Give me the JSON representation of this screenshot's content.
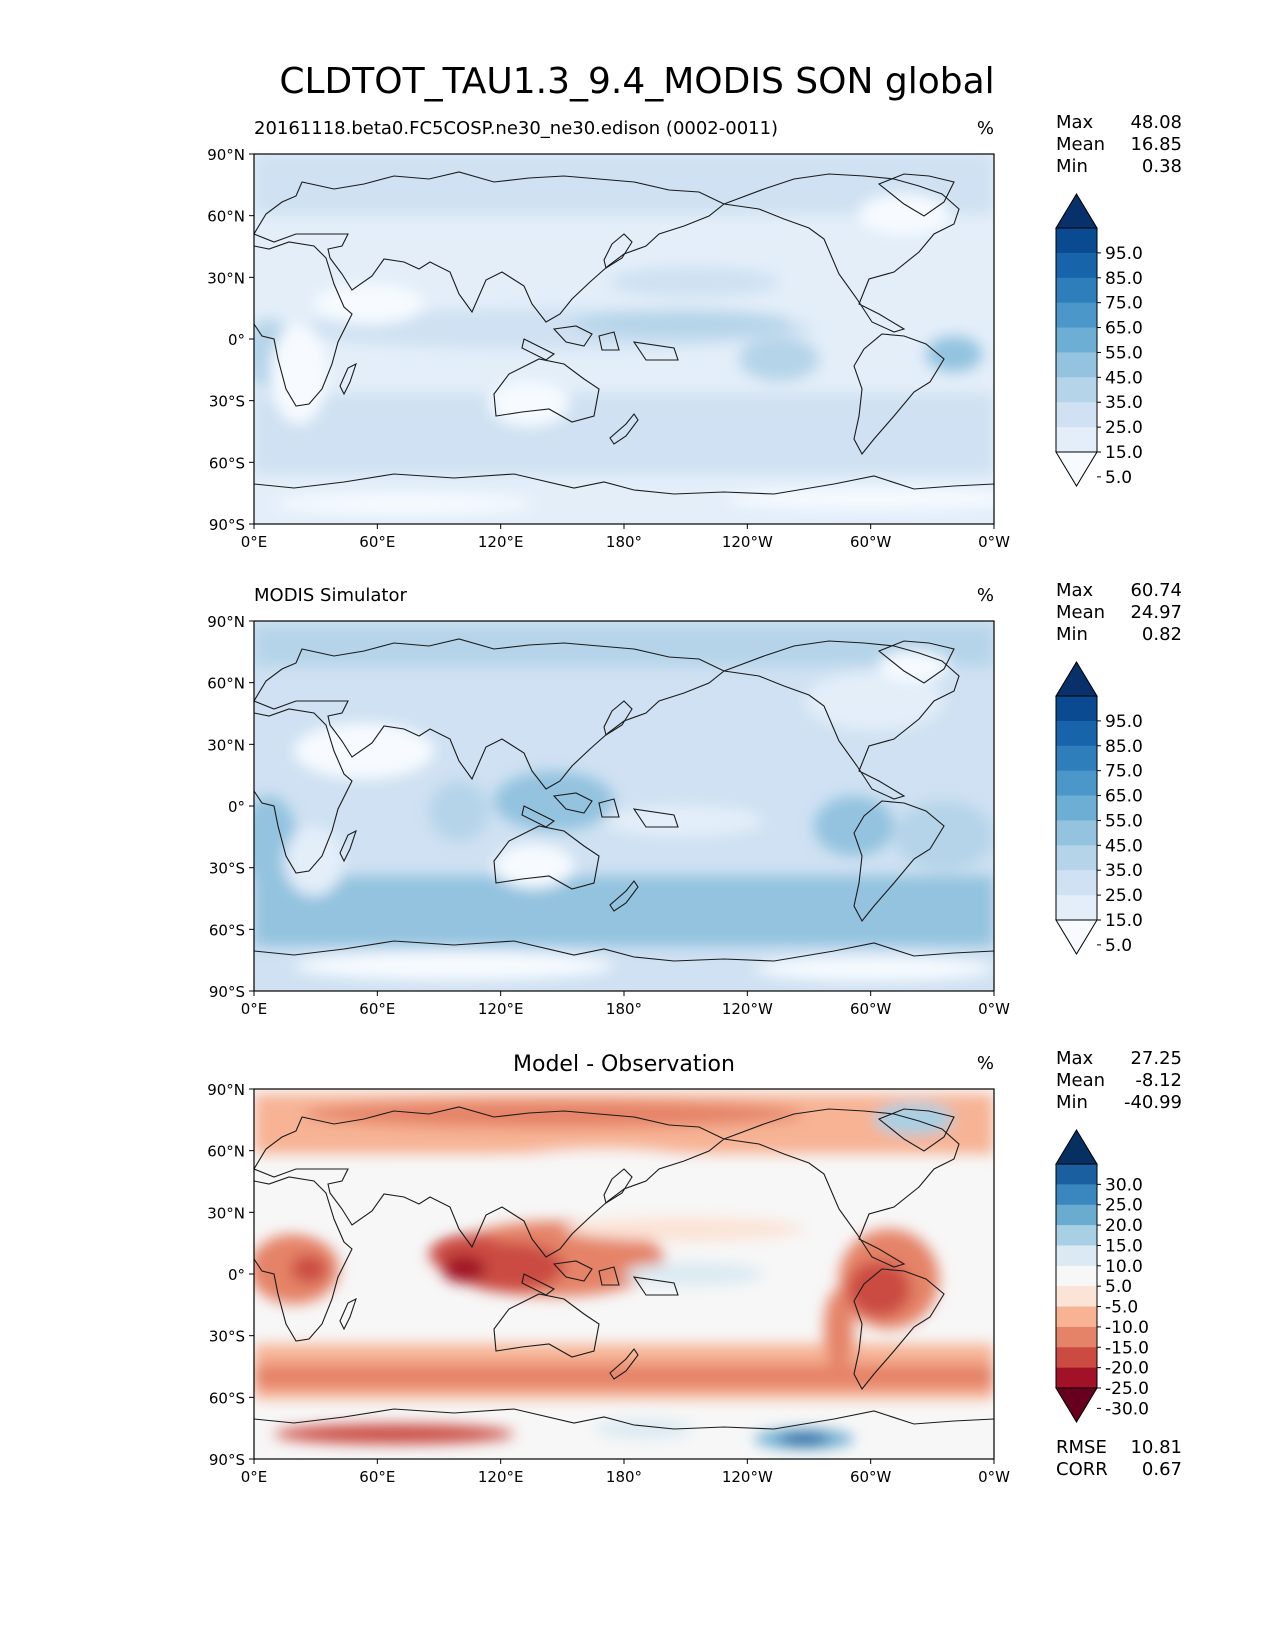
{
  "figure": {
    "title": "CLDTOT_TAU1.3_9.4_MODIS SON global"
  },
  "axis_ticks": {
    "lat": [
      "90°N",
      "60°N",
      "30°N",
      "0°",
      "30°S",
      "60°S",
      "90°S"
    ],
    "lon": [
      "0°E",
      "60°E",
      "120°E",
      "180°",
      "120°W",
      "60°W",
      "0°W"
    ]
  },
  "colors": {
    "blues": [
      "#f7fbff",
      "#e3eef9",
      "#cfe1f2",
      "#b5d4e9",
      "#93c3df",
      "#6daed5",
      "#4b97c9",
      "#2f7ebc",
      "#1864aa",
      "#0a4a90",
      "#08306b"
    ],
    "diff": [
      "#67001f",
      "#a11228",
      "#cb4b43",
      "#e58368",
      "#f7b394",
      "#fbe3d6",
      "#f7f7f7",
      "#dbeaf2",
      "#a7d0e4",
      "#6aacd0",
      "#3a87bf",
      "#1a5fa0",
      "#053061"
    ]
  },
  "chart_data": [
    {
      "type": "heatmap",
      "panel": "test",
      "title": "20161118.beta0.FC5COSP.ne30_ne30.edison (0002-0011)",
      "units": "%",
      "stats": {
        "max_label": "Max",
        "max": "48.08",
        "mean_label": "Mean",
        "mean": "16.85",
        "min_label": "Min",
        "min": "0.38"
      },
      "levels": [
        0,
        5,
        15,
        25,
        35,
        45,
        55,
        65,
        75,
        85,
        95,
        100
      ],
      "colorbar_labels": [
        "95.0",
        "85.0",
        "75.0",
        "65.0",
        "55.0",
        "45.0",
        "35.0",
        "25.0",
        "15.0",
        "5.0"
      ],
      "colormap": "blues",
      "xlim": [
        0,
        360
      ],
      "ylim": [
        -90,
        90
      ]
    },
    {
      "type": "heatmap",
      "panel": "reference",
      "title": "MODIS Simulator",
      "units": "%",
      "stats": {
        "max_label": "Max",
        "max": "60.74",
        "mean_label": "Mean",
        "mean": "24.97",
        "min_label": "Min",
        "min": "0.82"
      },
      "levels": [
        0,
        5,
        15,
        25,
        35,
        45,
        55,
        65,
        75,
        85,
        95,
        100
      ],
      "colorbar_labels": [
        "95.0",
        "85.0",
        "75.0",
        "65.0",
        "55.0",
        "45.0",
        "35.0",
        "25.0",
        "15.0",
        "5.0"
      ],
      "colormap": "blues",
      "xlim": [
        0,
        360
      ],
      "ylim": [
        -90,
        90
      ]
    },
    {
      "type": "heatmap",
      "panel": "difference",
      "title": "Model - Observation",
      "units": "%",
      "stats": {
        "max_label": "Max",
        "max": "27.25",
        "mean_label": "Mean",
        "mean": "-8.12",
        "min_label": "Min",
        "min": "-40.99"
      },
      "extra_stats": {
        "rmse_label": "RMSE",
        "rmse": "10.81",
        "corr_label": "CORR",
        "corr": "0.67"
      },
      "levels": [
        -35,
        -30,
        -25,
        -20,
        -15,
        -10,
        -5,
        5,
        10,
        15,
        20,
        25,
        30,
        35
      ],
      "colorbar_labels": [
        "30.0",
        "25.0",
        "20.0",
        "15.0",
        "10.0",
        "5.0",
        "-5.0",
        "-10.0",
        "-15.0",
        "-20.0",
        "-25.0",
        "-30.0"
      ],
      "colormap": "diff",
      "xlim": [
        0,
        360
      ],
      "ylim": [
        -90,
        90
      ]
    }
  ]
}
